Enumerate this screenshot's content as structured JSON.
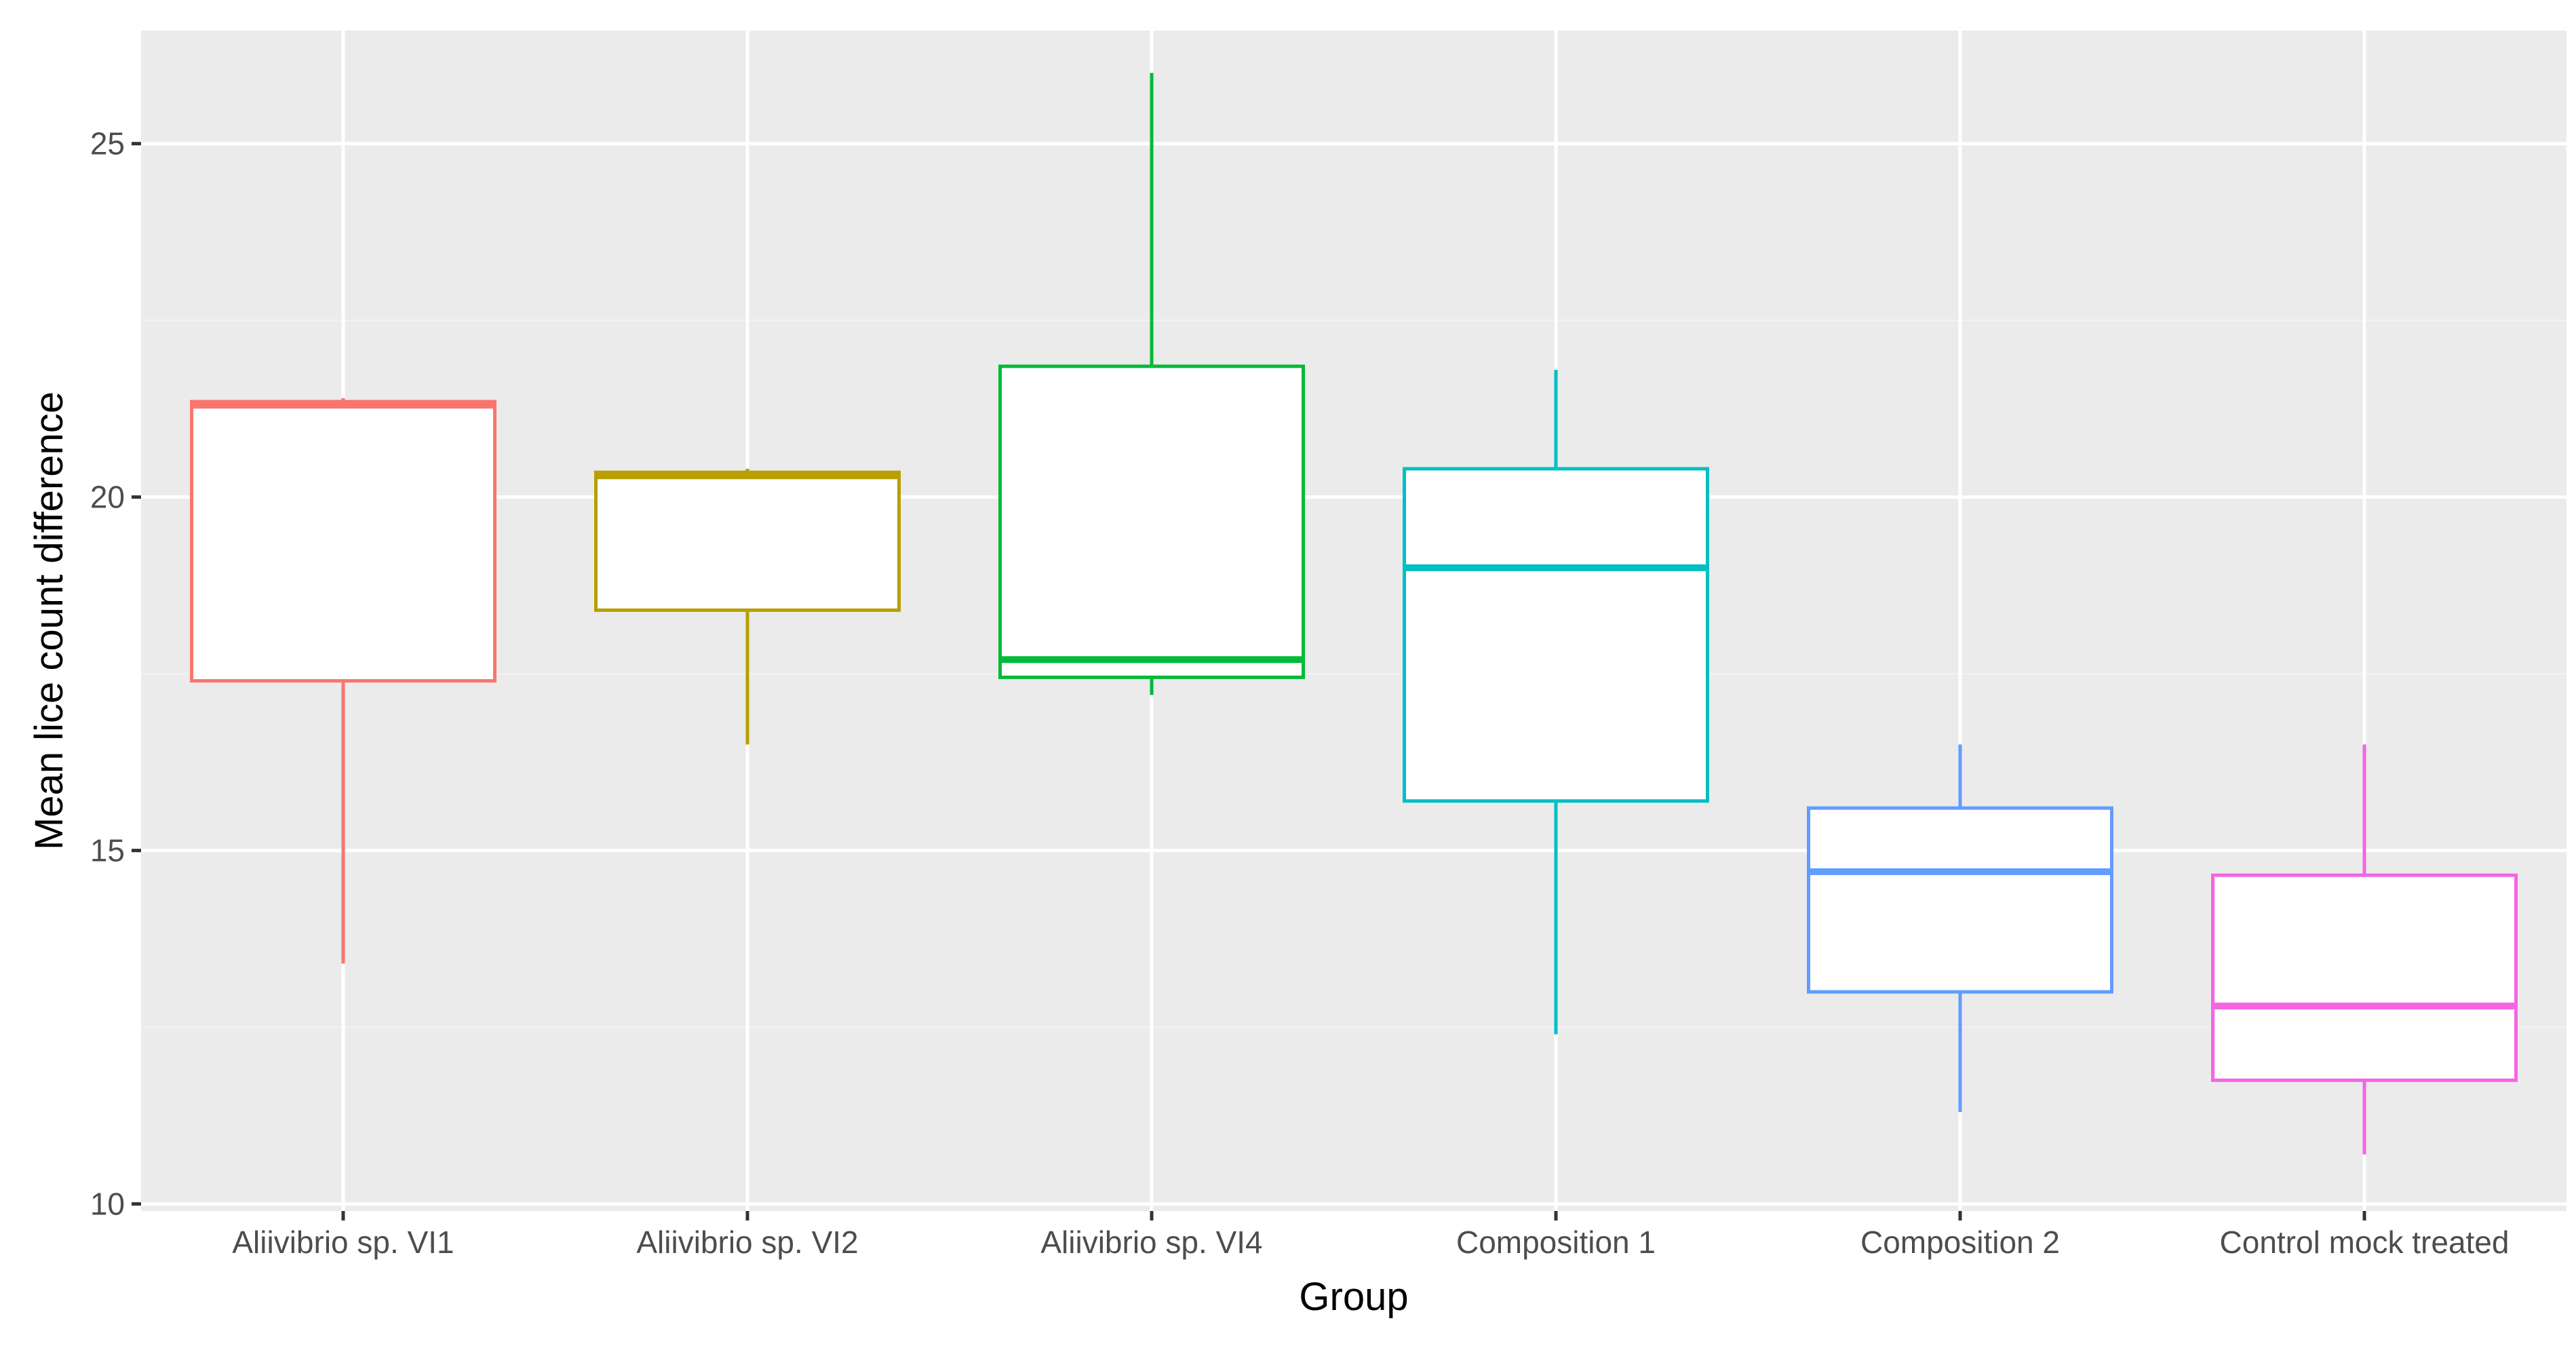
{
  "chart_data": {
    "type": "boxplot",
    "title": "",
    "xlabel": "Group",
    "ylabel": "Mean lice count difference",
    "ylim": [
      9.9,
      26.6
    ],
    "yticks": [
      10,
      15,
      20,
      25
    ],
    "ytick_labels": [
      "10",
      "15",
      "20",
      "25"
    ],
    "minor_yticks": [
      12.5,
      17.5,
      22.5
    ],
    "grid": true,
    "legend": "none",
    "categories": [
      "Aliivibrio sp. VI1",
      "Aliivibrio sp. VI2",
      "Aliivibrio sp. VI4",
      "Composition 1",
      "Composition 2",
      "Control mock treated"
    ],
    "boxes": [
      {
        "group": "Aliivibrio sp. VI1",
        "whisker_low": 13.4,
        "q1": 17.4,
        "median": 21.3,
        "q3": 21.35,
        "whisker_high": 21.4,
        "color": "#F8766D"
      },
      {
        "group": "Aliivibrio sp. VI2",
        "whisker_low": 16.5,
        "q1": 18.4,
        "median": 20.3,
        "q3": 20.35,
        "whisker_high": 20.4,
        "color": "#B79F00"
      },
      {
        "group": "Aliivibrio sp. VI4",
        "whisker_low": 17.2,
        "q1": 17.45,
        "median": 17.7,
        "q3": 21.85,
        "whisker_high": 26.0,
        "color": "#00BA38"
      },
      {
        "group": "Composition 1",
        "whisker_low": 12.4,
        "q1": 15.7,
        "median": 19.0,
        "q3": 20.4,
        "whisker_high": 21.8,
        "color": "#00BFC4"
      },
      {
        "group": "Composition 2",
        "whisker_low": 11.3,
        "q1": 13.0,
        "median": 14.7,
        "q3": 15.6,
        "whisker_high": 16.5,
        "color": "#619CFF"
      },
      {
        "group": "Control mock treated",
        "whisker_low": 10.7,
        "q1": 11.75,
        "median": 12.8,
        "q3": 14.65,
        "whisker_high": 16.5,
        "color": "#F564E3"
      }
    ],
    "colors": {
      "panel_background": "#EBEBEB",
      "grid_major": "#FFFFFF",
      "grid_minor": "#F2F2F2",
      "tick_text": "#4D4D4D",
      "title_text": "#000000"
    }
  }
}
